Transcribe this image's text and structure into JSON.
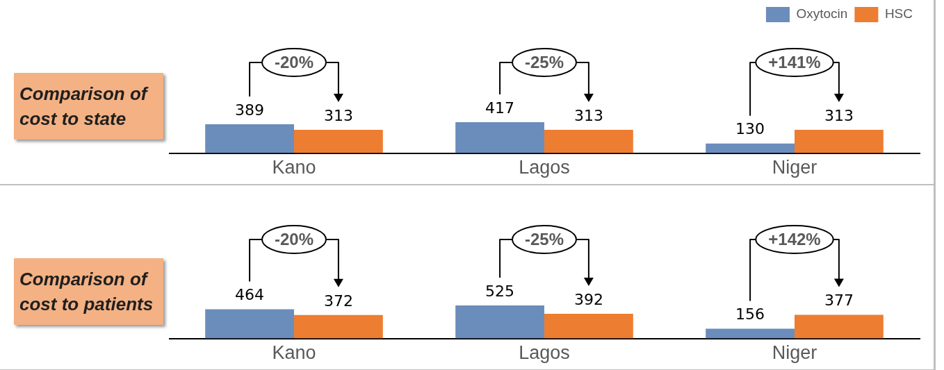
{
  "chart_data": [
    {
      "type": "bar",
      "title": "Comparison of cost to state",
      "categories": [
        "Kano",
        "Lagos",
        "Niger"
      ],
      "series": [
        {
          "name": "Oxytocin",
          "color": "#6b8dbb",
          "values": [
            389,
            417,
            130
          ]
        },
        {
          "name": "HSC",
          "color": "#ed7d31",
          "values": [
            313,
            313,
            313
          ]
        }
      ],
      "data_labels": true,
      "legend": "top right",
      "annotations": [
        "-20%",
        "-25%",
        "+141%"
      ]
    },
    {
      "type": "bar",
      "title": "Comparison of cost to patients",
      "categories": [
        "Kano",
        "Lagos",
        "Niger"
      ],
      "series": [
        {
          "color": "#6b8dbb",
          "values": [
            464,
            525,
            156
          ]
        },
        {
          "color": "#ed7d31",
          "values": [
            372,
            392,
            377
          ]
        }
      ],
      "data_labels": true,
      "legend": false,
      "annotations": [
        "-20%",
        "-25%",
        "+142%"
      ]
    }
  ]
}
